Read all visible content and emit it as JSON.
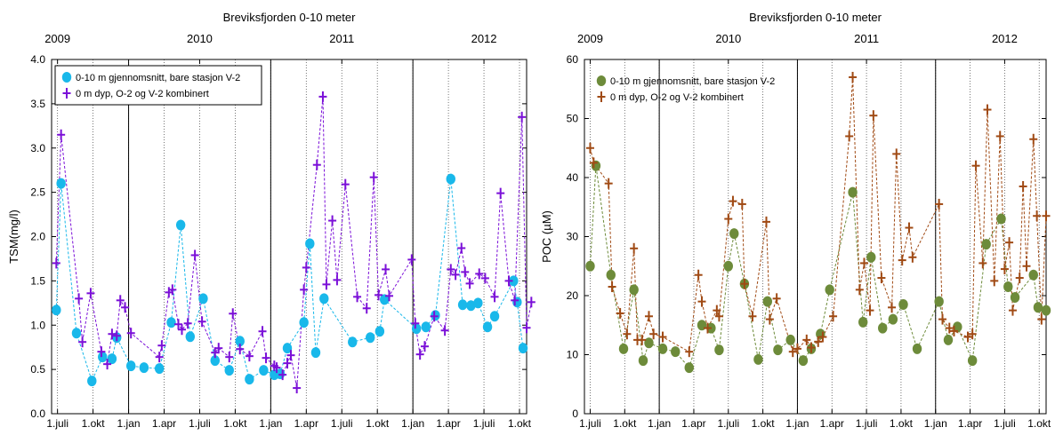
{
  "chart_data": [
    {
      "type": "scatter",
      "title": "Breviksfjorden 0-10 meter",
      "ylabel": "TSM(mg/l)",
      "xlabel": "",
      "ylim": [
        0,
        4
      ],
      "yticks": [
        "0.0",
        "0.5",
        "1.0",
        "1.5",
        "2.0",
        "2.5",
        "3.0",
        "3.5",
        "4.0"
      ],
      "x_axis": "months since 1.jan 2009",
      "xlim": [
        5.5,
        45.6
      ],
      "xticks": [
        {
          "m": 6,
          "label": "1.juli"
        },
        {
          "m": 9,
          "label": "1.okt"
        },
        {
          "m": 12,
          "label": "1.jan"
        },
        {
          "m": 15,
          "label": "1.apr"
        },
        {
          "m": 18,
          "label": "1.juli"
        },
        {
          "m": 21,
          "label": "1.okt"
        },
        {
          "m": 24,
          "label": "1.jan"
        },
        {
          "m": 27,
          "label": "1.apr"
        },
        {
          "m": 30,
          "label": "1.juli"
        },
        {
          "m": 33,
          "label": "1.okt"
        },
        {
          "m": 36,
          "label": "1.jan"
        },
        {
          "m": 39,
          "label": "1.apr"
        },
        {
          "m": 42,
          "label": "1.juli"
        },
        {
          "m": 45,
          "label": "1.okt"
        }
      ],
      "top_ticks": [
        {
          "m": 6,
          "label": "2009"
        },
        {
          "m": 18,
          "label": "2010"
        },
        {
          "m": 30,
          "label": "2011"
        },
        {
          "m": 42,
          "label": "2012"
        }
      ],
      "year_lines": [
        12,
        24,
        36
      ],
      "legend_position": "top-left",
      "series": [
        {
          "name": "0-10 m gjennomsnitt, bare stasjon V-2",
          "marker": "circle",
          "color": "#19b8ea",
          "x": [
            5.9,
            6.3,
            7.6,
            8.9,
            9.8,
            10.6,
            11.0,
            12.2,
            13.3,
            14.6,
            15.6,
            16.4,
            17.2,
            18.3,
            19.3,
            20.5,
            21.4,
            22.2,
            23.4,
            24.3,
            24.8,
            25.4,
            26.8,
            27.3,
            27.8,
            28.5,
            30.9,
            32.4,
            33.2,
            33.6,
            36.3,
            37.1,
            37.9,
            39.2,
            40.2,
            40.9,
            41.5,
            42.3,
            42.9,
            44.5,
            44.8,
            45.3
          ],
          "y": [
            1.17,
            2.6,
            0.91,
            0.37,
            0.64,
            0.62,
            0.86,
            0.54,
            0.52,
            0.51,
            1.03,
            2.13,
            0.87,
            1.3,
            0.6,
            0.49,
            0.82,
            0.39,
            0.49,
            0.44,
            0.45,
            0.74,
            1.03,
            1.92,
            0.69,
            1.3,
            0.81,
            0.86,
            0.93,
            1.29,
            0.96,
            0.98,
            1.11,
            2.65,
            1.23,
            1.22,
            1.25,
            0.98,
            1.1,
            1.5,
            1.26,
            0.74
          ]
        },
        {
          "name": "0 m dyp, O-2 og V-2 kombinert",
          "marker": "plus",
          "color": "#7b10d8",
          "x": [
            5.9,
            6.3,
            7.8,
            8.1,
            8.8,
            9.7,
            10.2,
            10.6,
            11.0,
            11.3,
            11.7,
            12.2,
            14.6,
            14.8,
            15.4,
            15.7,
            16.2,
            16.5,
            17.0,
            17.6,
            18.2,
            19.3,
            19.6,
            20.5,
            20.8,
            21.4,
            22.2,
            23.3,
            23.6,
            24.3,
            24.5,
            25.0,
            25.4,
            25.7,
            26.2,
            26.8,
            27.0,
            27.9,
            28.4,
            28.7,
            29.2,
            29.6,
            30.3,
            31.3,
            32.1,
            32.7,
            33.1,
            33.7,
            34.0,
            35.9,
            36.2,
            36.6,
            37.0,
            37.8,
            38.7,
            39.2,
            39.6,
            40.1,
            40.4,
            40.8,
            41.6,
            42.1,
            42.9,
            43.4,
            44.1,
            44.6,
            45.2,
            45.6,
            46.0
          ],
          "y": [
            1.7,
            3.15,
            1.3,
            0.81,
            1.36,
            0.7,
            0.56,
            0.9,
            0.88,
            1.28,
            1.2,
            0.91,
            0.64,
            0.77,
            1.37,
            1.4,
            1.01,
            0.95,
            1.02,
            1.79,
            1.04,
            0.69,
            0.74,
            0.64,
            1.13,
            0.73,
            0.65,
            0.93,
            0.63,
            0.54,
            0.52,
            0.44,
            0.57,
            0.66,
            0.29,
            1.4,
            1.65,
            2.81,
            3.58,
            1.46,
            2.18,
            1.51,
            2.59,
            1.32,
            1.19,
            2.67,
            1.34,
            1.63,
            1.33,
            1.74,
            1.02,
            0.67,
            0.76,
            1.1,
            0.94,
            1.63,
            1.57,
            1.87,
            1.6,
            1.47,
            1.58,
            1.53,
            1.32,
            2.49,
            1.5,
            1.28,
            3.35,
            0.97,
            1.26
          ]
        }
      ]
    },
    {
      "type": "scatter",
      "title": "Breviksfjorden 0-10 meter",
      "ylabel": "POC (µM)",
      "xlabel": "",
      "ylim": [
        0,
        60
      ],
      "yticks": [
        "0",
        "10",
        "20",
        "30",
        "40",
        "50",
        "60"
      ],
      "x_axis": "months since 1.jan 2009",
      "xlim": [
        5.5,
        45.6
      ],
      "xticks": [
        {
          "m": 6,
          "label": "1.juli"
        },
        {
          "m": 9,
          "label": "1.okt"
        },
        {
          "m": 12,
          "label": "1.jan"
        },
        {
          "m": 15,
          "label": "1.apr"
        },
        {
          "m": 18,
          "label": "1.juli"
        },
        {
          "m": 21,
          "label": "1.okt"
        },
        {
          "m": 24,
          "label": "1.jan"
        },
        {
          "m": 27,
          "label": "1.apr"
        },
        {
          "m": 30,
          "label": "1.juli"
        },
        {
          "m": 33,
          "label": "1.okt"
        },
        {
          "m": 36,
          "label": "1.jan"
        },
        {
          "m": 39,
          "label": "1.apr"
        },
        {
          "m": 42,
          "label": "1.juli"
        },
        {
          "m": 45,
          "label": "1.okt"
        }
      ],
      "top_ticks": [
        {
          "m": 6,
          "label": "2009"
        },
        {
          "m": 18,
          "label": "2010"
        },
        {
          "m": 30,
          "label": "2011"
        },
        {
          "m": 42,
          "label": "2012"
        }
      ],
      "year_lines": [
        12,
        24,
        36
      ],
      "legend_position": "top-left",
      "series": [
        {
          "name": "0-10 m gjennomsnitt, bare stasjon V-2",
          "marker": "circle",
          "color": "#6d8b3a",
          "x": [
            6.0,
            6.5,
            7.8,
            8.9,
            9.8,
            10.6,
            11.1,
            12.3,
            13.4,
            14.6,
            15.7,
            16.5,
            17.2,
            18.0,
            18.5,
            19.4,
            20.6,
            21.4,
            22.3,
            23.4,
            24.5,
            25.2,
            26.0,
            26.8,
            28.8,
            29.7,
            30.4,
            31.4,
            32.3,
            33.2,
            34.4,
            36.3,
            37.1,
            37.9,
            39.2,
            40.4,
            41.7,
            42.3,
            42.9,
            44.5,
            44.9,
            45.6
          ],
          "y": [
            25,
            42,
            23.5,
            11,
            21,
            9,
            12,
            11,
            10.5,
            7.8,
            15,
            14.5,
            10.8,
            25,
            30.5,
            22,
            9.2,
            19,
            10.8,
            12.5,
            9,
            11,
            13.5,
            21,
            37.5,
            15.5,
            26.5,
            14.5,
            16,
            18.5,
            11,
            19,
            12.5,
            14.7,
            9,
            28.7,
            33,
            21.5,
            19.7,
            23.5,
            18,
            17.5
          ]
        },
        {
          "name": "0 m dyp, O-2 og V-2 kombinert",
          "marker": "plus",
          "color": "#a04a14",
          "x": [
            6.0,
            6.3,
            7.6,
            7.9,
            8.6,
            9.2,
            9.8,
            10.1,
            10.5,
            11.1,
            11.5,
            12.3,
            14.6,
            15.4,
            15.7,
            16.2,
            17.0,
            17.2,
            18.0,
            18.4,
            19.2,
            19.4,
            20.1,
            21.3,
            21.6,
            22.2,
            23.6,
            24.0,
            24.8,
            25.2,
            25.8,
            26.2,
            27.1,
            28.5,
            28.8,
            29.4,
            29.8,
            30.3,
            30.6,
            31.3,
            32.2,
            32.6,
            33.1,
            33.7,
            34.0,
            36.3,
            36.6,
            37.2,
            37.6,
            38.8,
            39.2,
            39.5,
            40.1,
            40.5,
            41.1,
            41.6,
            42.0,
            42.4,
            42.7,
            43.3,
            43.6,
            43.9,
            44.5,
            44.8,
            45.2,
            45.6
          ],
          "y": [
            45,
            42.5,
            39,
            21.5,
            17,
            13.5,
            28,
            12.5,
            12.5,
            16.5,
            13.5,
            13,
            10.5,
            23.5,
            19,
            14.5,
            17.5,
            16.5,
            33,
            36,
            35.5,
            22,
            16.5,
            32.5,
            16,
            19.5,
            10.5,
            11,
            12.5,
            11.2,
            12.2,
            13,
            16.5,
            47,
            57,
            21,
            25.5,
            17.5,
            50.5,
            23,
            18,
            44,
            26,
            31.5,
            26.5,
            35.5,
            16,
            14.5,
            14,
            13,
            13.5,
            42,
            25.5,
            51.5,
            22.5,
            47,
            24.5,
            29,
            17.5,
            23,
            38.5,
            25,
            46.5,
            33.5,
            16,
            33.5
          ]
        }
      ]
    }
  ]
}
